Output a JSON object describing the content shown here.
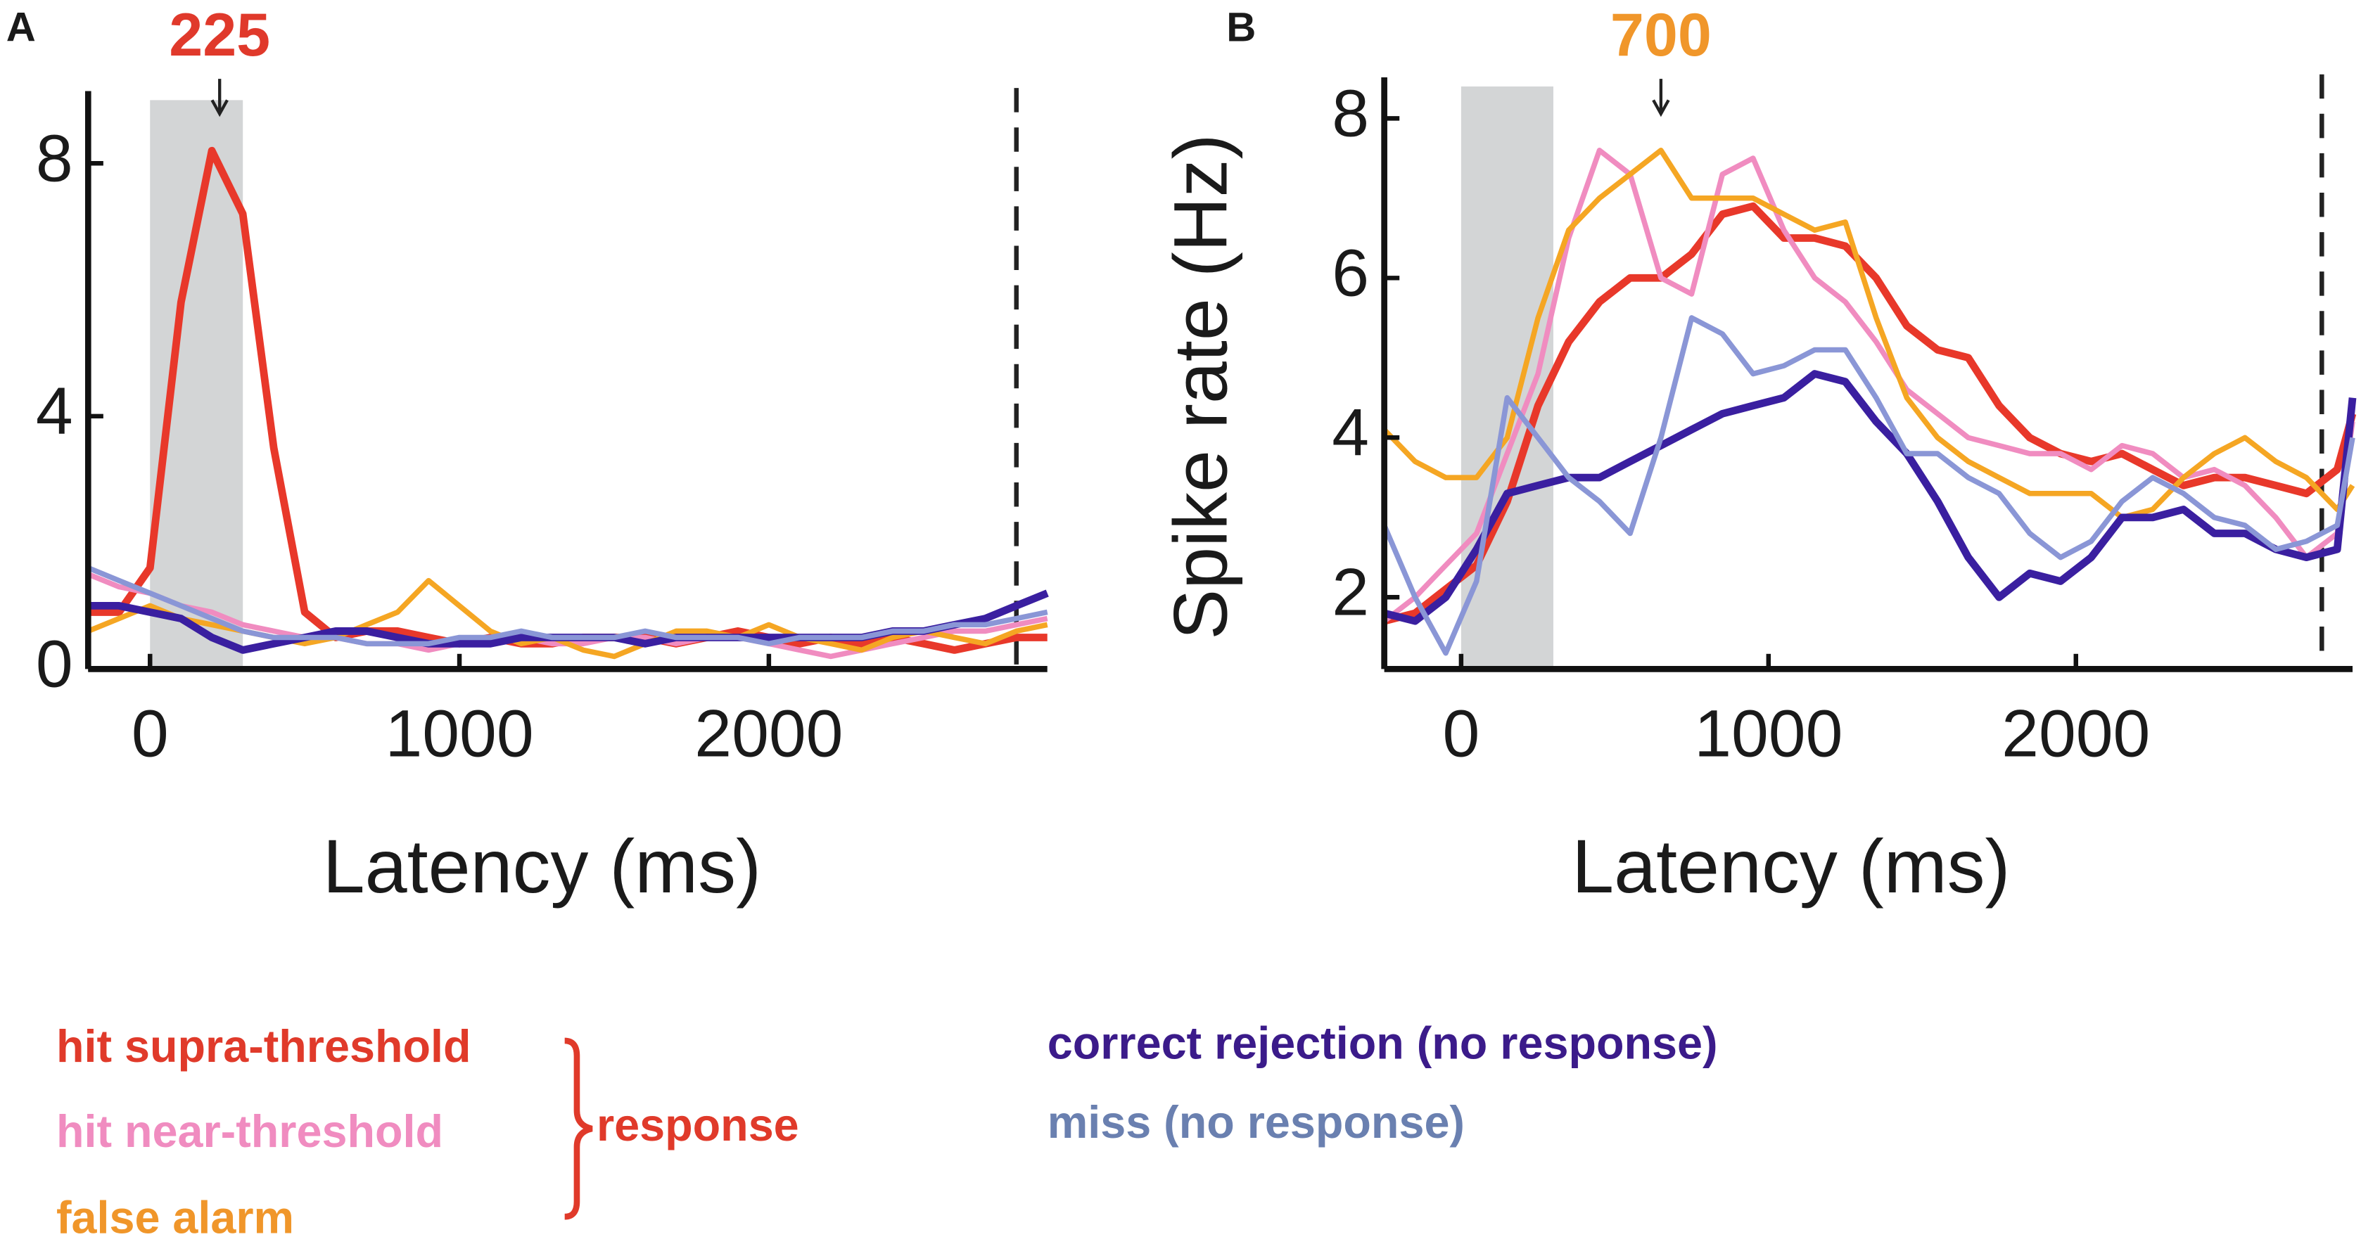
{
  "chart_data": [
    {
      "type": "line",
      "panel": "A",
      "xlabel": "Latency (ms)",
      "annotation": {
        "text": "225",
        "x": 225,
        "color": "#e0392b"
      },
      "shade": [
        0,
        300
      ],
      "vline": 2800,
      "xlim": [
        -200,
        2900
      ],
      "ylim": [
        0,
        9
      ],
      "xticks": [
        0,
        1000,
        2000
      ],
      "yticks": [
        0,
        4,
        8
      ],
      "x": [
        -200,
        -100,
        0,
        100,
        200,
        300,
        400,
        500,
        600,
        700,
        800,
        900,
        1000,
        1100,
        1200,
        1300,
        1400,
        1500,
        1600,
        1700,
        1800,
        1900,
        2000,
        2100,
        2200,
        2300,
        2400,
        2500,
        2600,
        2700,
        2800,
        2900
      ],
      "series": [
        {
          "name": "hit supra-threshold",
          "color": "#e8382a",
          "values": [
            0.9,
            0.9,
            1.6,
            5.8,
            8.2,
            7.2,
            3.5,
            0.9,
            0.5,
            0.6,
            0.6,
            0.5,
            0.4,
            0.5,
            0.4,
            0.4,
            0.5,
            0.5,
            0.5,
            0.4,
            0.5,
            0.6,
            0.5,
            0.4,
            0.5,
            0.4,
            0.5,
            0.4,
            0.3,
            0.4,
            0.5,
            0.5
          ]
        },
        {
          "name": "hit near-threshold",
          "color": "#f08cc0",
          "values": [
            1.5,
            1.3,
            1.2,
            1.0,
            0.9,
            0.7,
            0.6,
            0.5,
            0.5,
            0.4,
            0.4,
            0.3,
            0.4,
            0.5,
            0.5,
            0.4,
            0.4,
            0.5,
            0.5,
            0.4,
            0.5,
            0.5,
            0.4,
            0.3,
            0.2,
            0.3,
            0.4,
            0.5,
            0.6,
            0.6,
            0.7,
            0.8
          ]
        },
        {
          "name": "false alarm",
          "color": "#f5a623",
          "values": [
            0.6,
            0.8,
            1.0,
            0.8,
            0.7,
            0.6,
            0.5,
            0.4,
            0.5,
            0.7,
            0.9,
            1.4,
            1.0,
            0.6,
            0.4,
            0.5,
            0.3,
            0.2,
            0.4,
            0.6,
            0.6,
            0.5,
            0.7,
            0.5,
            0.4,
            0.3,
            0.5,
            0.6,
            0.5,
            0.4,
            0.6,
            0.7
          ]
        },
        {
          "name": "correct rejection (no response)",
          "color": "#3a1fa0",
          "values": [
            1.0,
            1.0,
            0.9,
            0.8,
            0.5,
            0.3,
            0.4,
            0.5,
            0.6,
            0.6,
            0.5,
            0.4,
            0.4,
            0.4,
            0.5,
            0.5,
            0.5,
            0.5,
            0.4,
            0.5,
            0.5,
            0.5,
            0.5,
            0.5,
            0.5,
            0.5,
            0.6,
            0.6,
            0.7,
            0.8,
            1.0,
            1.2
          ]
        },
        {
          "name": "miss (no response)",
          "color": "#8a96d6",
          "values": [
            1.6,
            1.4,
            1.2,
            1.0,
            0.8,
            0.6,
            0.5,
            0.5,
            0.5,
            0.4,
            0.4,
            0.4,
            0.5,
            0.5,
            0.6,
            0.5,
            0.5,
            0.5,
            0.6,
            0.5,
            0.5,
            0.5,
            0.4,
            0.5,
            0.5,
            0.5,
            0.6,
            0.6,
            0.7,
            0.7,
            0.8,
            0.9
          ]
        }
      ]
    },
    {
      "type": "line",
      "panel": "B",
      "xlabel": "Latency (ms)",
      "ylabel": "Spike rate (Hz)",
      "annotation": {
        "text": "700",
        "x": 650,
        "color": "#f0962a"
      },
      "shade": [
        0,
        300
      ],
      "vline": 2800,
      "xlim": [
        -250,
        2900
      ],
      "ylim": [
        1.1,
        8.4
      ],
      "xticks": [
        0,
        1000,
        2000
      ],
      "yticks": [
        2,
        4,
        6,
        8
      ],
      "x": [
        -250,
        -150,
        -50,
        50,
        150,
        250,
        350,
        450,
        550,
        650,
        750,
        850,
        950,
        1050,
        1150,
        1250,
        1350,
        1450,
        1550,
        1650,
        1750,
        1850,
        1950,
        2050,
        2150,
        2250,
        2350,
        2450,
        2550,
        2650,
        2750,
        2850,
        2900
      ],
      "series": [
        {
          "color": "#e8382a",
          "values": [
            1.7,
            1.8,
            2.1,
            2.4,
            3.2,
            4.4,
            5.2,
            5.7,
            6.0,
            6.0,
            6.3,
            6.8,
            6.9,
            6.5,
            6.5,
            6.4,
            6.0,
            5.4,
            5.1,
            5.0,
            4.4,
            4.0,
            3.8,
            3.7,
            3.8,
            3.6,
            3.4,
            3.5,
            3.5,
            3.4,
            3.3,
            3.6,
            4.3
          ]
        },
        {
          "color": "#f08cc0",
          "values": [
            1.7,
            2.0,
            2.4,
            2.8,
            3.8,
            4.8,
            6.5,
            7.6,
            7.3,
            6.0,
            5.8,
            7.3,
            7.5,
            6.6,
            6.0,
            5.7,
            5.2,
            4.6,
            4.3,
            4.0,
            3.9,
            3.8,
            3.8,
            3.6,
            3.9,
            3.8,
            3.5,
            3.6,
            3.4,
            3.0,
            2.5,
            2.8,
            4.2
          ]
        },
        {
          "color": "#f5a623",
          "values": [
            4.1,
            3.7,
            3.5,
            3.5,
            4.0,
            5.5,
            6.6,
            7.0,
            7.3,
            7.6,
            7.0,
            7.0,
            7.0,
            6.8,
            6.6,
            6.7,
            5.5,
            4.5,
            4.0,
            3.7,
            3.5,
            3.3,
            3.3,
            3.3,
            3.0,
            3.1,
            3.5,
            3.8,
            4.0,
            3.7,
            3.5,
            3.1,
            3.4
          ]
        },
        {
          "color": "#3a1fa0",
          "values": [
            1.8,
            1.7,
            2.0,
            2.6,
            3.3,
            3.4,
            3.5,
            3.5,
            3.7,
            3.9,
            4.1,
            4.3,
            4.4,
            4.5,
            4.8,
            4.7,
            4.2,
            3.8,
            3.2,
            2.5,
            2.0,
            2.3,
            2.2,
            2.5,
            3.0,
            3.0,
            3.1,
            2.8,
            2.8,
            2.6,
            2.5,
            2.6,
            4.5
          ]
        },
        {
          "color": "#8a96d6",
          "values": [
            2.9,
            2.0,
            1.3,
            2.2,
            4.5,
            4.0,
            3.5,
            3.2,
            2.8,
            4.0,
            5.5,
            5.3,
            4.8,
            4.9,
            5.1,
            5.1,
            4.5,
            3.8,
            3.8,
            3.5,
            3.3,
            2.8,
            2.5,
            2.7,
            3.2,
            3.5,
            3.3,
            3.0,
            2.9,
            2.6,
            2.7,
            2.9,
            4.0
          ]
        }
      ]
    }
  ],
  "legend": {
    "group_label": "response",
    "text_colors": [
      "#e03a2a",
      "#f08cc0",
      "#f0962a",
      "#3b1b8a",
      "#6a80b0"
    ]
  }
}
